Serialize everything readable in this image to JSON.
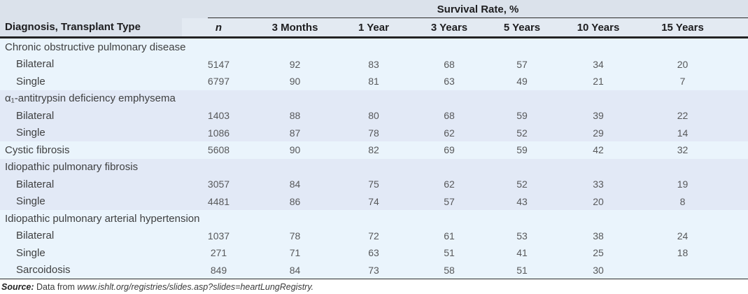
{
  "table": {
    "spanner": "Survival Rate, %",
    "diagnosis_header": "Diagnosis, Transplant Type",
    "columns": [
      "n",
      "3 Months",
      "1 Year",
      "3 Years",
      "5 Years",
      "10 Years",
      "15 Years"
    ],
    "groups": [
      {
        "band": "light",
        "rows": [
          {
            "label": "Chronic obstructive pulmonary disease",
            "indent": false,
            "cells": [
              "",
              "",
              "",
              "",
              "",
              "",
              ""
            ]
          },
          {
            "label": "Bilateral",
            "indent": true,
            "cells": [
              "5147",
              "92",
              "83",
              "68",
              "57",
              "34",
              "20"
            ]
          },
          {
            "label": "Single",
            "indent": true,
            "cells": [
              "6797",
              "90",
              "81",
              "63",
              "49",
              "21",
              "7"
            ]
          }
        ]
      },
      {
        "band": "dark",
        "rows": [
          {
            "label": "α₁-antitrypsin deficiency emphysema",
            "indent": false,
            "cells": [
              "",
              "",
              "",
              "",
              "",
              "",
              ""
            ]
          },
          {
            "label": "Bilateral",
            "indent": true,
            "cells": [
              "1403",
              "88",
              "80",
              "68",
              "59",
              "39",
              "22"
            ]
          },
          {
            "label": "Single",
            "indent": true,
            "cells": [
              "1086",
              "87",
              "78",
              "62",
              "52",
              "29",
              "14"
            ]
          }
        ]
      },
      {
        "band": "light",
        "rows": [
          {
            "label": "Cystic fibrosis",
            "indent": false,
            "cells": [
              "5608",
              "90",
              "82",
              "69",
              "59",
              "42",
              "32"
            ]
          }
        ]
      },
      {
        "band": "dark",
        "rows": [
          {
            "label": "Idiopathic pulmonary fibrosis",
            "indent": false,
            "cells": [
              "",
              "",
              "",
              "",
              "",
              "",
              ""
            ]
          },
          {
            "label": "Bilateral",
            "indent": true,
            "cells": [
              "3057",
              "84",
              "75",
              "62",
              "52",
              "33",
              "19"
            ]
          },
          {
            "label": "Single",
            "indent": true,
            "cells": [
              "4481",
              "86",
              "74",
              "57",
              "43",
              "20",
              "8"
            ]
          }
        ]
      },
      {
        "band": "light",
        "rows": [
          {
            "label": "Idiopathic pulmonary arterial hypertension",
            "indent": false,
            "cells": [
              "",
              "",
              "",
              "",
              "",
              "",
              ""
            ]
          },
          {
            "label": "Bilateral",
            "indent": true,
            "cells": [
              "1037",
              "78",
              "72",
              "61",
              "53",
              "38",
              "24"
            ]
          },
          {
            "label": "Single",
            "indent": true,
            "cells": [
              "271",
              "71",
              "63",
              "51",
              "41",
              "25",
              "18"
            ]
          },
          {
            "label": "Sarcoidosis",
            "indent": true,
            "cells": [
              "849",
              "84",
              "73",
              "58",
              "51",
              "30",
              ""
            ]
          }
        ]
      }
    ],
    "source": {
      "label": "Source:",
      "text": " Data from ",
      "url": "www.ishlt.org/registries/slides.asp?slides=heartLungRegistry."
    }
  },
  "colors": {
    "band_light": "#eaf4fc",
    "band_dark": "#e2e9f6",
    "header_top_band": "#dbe2eb",
    "header_row_band": "#e3eaf2",
    "rule": "#232323"
  }
}
